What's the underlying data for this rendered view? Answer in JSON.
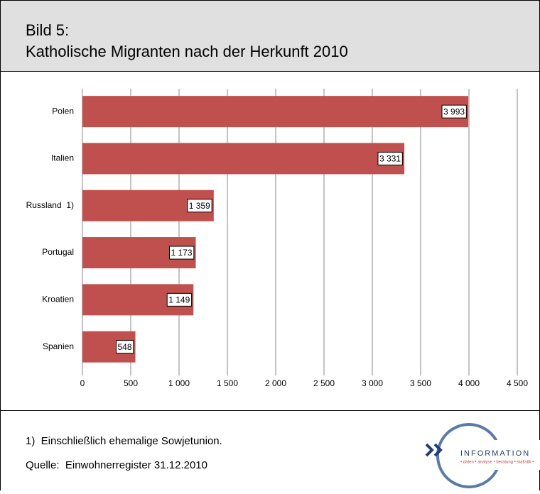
{
  "header": {
    "title_line1": "Bild 5:",
    "title_line2": "Katholische Migranten nach der Herkunft 2010"
  },
  "chart_data": {
    "type": "hbar",
    "categories": [
      "Polen",
      "Italien",
      "Russland  1)",
      "Portugal",
      "Kroatien",
      "Spanien"
    ],
    "values": [
      3993,
      3331,
      1359,
      1173,
      1149,
      548
    ],
    "value_labels": [
      "3 993",
      "3 331",
      "1 359",
      "1 173",
      "1 149",
      "548"
    ],
    "color": "#c0504d",
    "xlim": [
      0,
      4500
    ],
    "xticks": [
      0,
      500,
      {
        "value": 1000,
        "label": "1 000"
      },
      {
        "value": 1500,
        "label": "1 500"
      },
      {
        "value": 2000,
        "label": "2 000"
      },
      {
        "value": 2500,
        "label": "2 500"
      },
      {
        "value": 3000,
        "label": "3 000"
      },
      {
        "value": 3500,
        "label": "3 500"
      },
      {
        "value": 4000,
        "label": "4 000"
      },
      {
        "value": 4500,
        "label": "4 500"
      }
    ],
    "grid": true
  },
  "footer": {
    "note": "1)  Einschließlich ehemalige Sowjetunion.",
    "source": "Quelle:  Einwohnerregister 31.12.2010",
    "logo_text": "INFORMATION",
    "logo_subtext": "• daten • analyse • beratung • statistik •"
  }
}
